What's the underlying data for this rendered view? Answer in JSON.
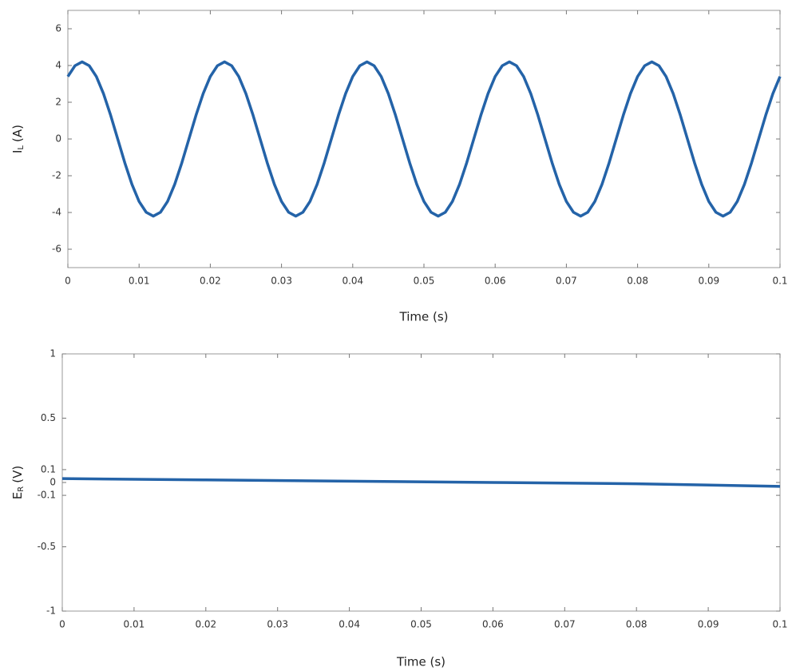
{
  "chart_data": [
    {
      "type": "line",
      "ylabel": {
        "base": "I",
        "subscript": "L",
        "unit": "(A)"
      },
      "xlabel": "Time (s)",
      "x": [
        0,
        0.001,
        0.002,
        0.003,
        0.004,
        0.005,
        0.006,
        0.007,
        0.008,
        0.009,
        0.01,
        0.011,
        0.012,
        0.013,
        0.014,
        0.015,
        0.016,
        0.017,
        0.018,
        0.019,
        0.02,
        0.021,
        0.022,
        0.023,
        0.024,
        0.025,
        0.026,
        0.027,
        0.028,
        0.029,
        0.03,
        0.031,
        0.032,
        0.033,
        0.034,
        0.035,
        0.036,
        0.037,
        0.038,
        0.039,
        0.04,
        0.041,
        0.042,
        0.043,
        0.044,
        0.045,
        0.046,
        0.047,
        0.048,
        0.049,
        0.05,
        0.051,
        0.052,
        0.053,
        0.054,
        0.055,
        0.056,
        0.057,
        0.058,
        0.059,
        0.06,
        0.061,
        0.062,
        0.063,
        0.064,
        0.065,
        0.066,
        0.067,
        0.068,
        0.069,
        0.07,
        0.071,
        0.072,
        0.073,
        0.074,
        0.075,
        0.076,
        0.077,
        0.078,
        0.079,
        0.08,
        0.081,
        0.082,
        0.083,
        0.084,
        0.085,
        0.086,
        0.087,
        0.088,
        0.089,
        0.09,
        0.091,
        0.092,
        0.093,
        0.094,
        0.095,
        0.096,
        0.097,
        0.098,
        0.099,
        0.1
      ],
      "values": [
        3.4,
        3.99,
        4.2,
        3.99,
        3.4,
        2.47,
        1.3,
        0,
        -1.3,
        -2.47,
        -3.4,
        -3.99,
        -4.2,
        -3.99,
        -3.4,
        -2.47,
        -1.3,
        0,
        1.3,
        2.47,
        3.4,
        3.99,
        4.2,
        3.99,
        3.4,
        2.47,
        1.3,
        0,
        -1.3,
        -2.47,
        -3.4,
        -3.99,
        -4.2,
        -3.99,
        -3.4,
        -2.47,
        -1.3,
        0,
        1.3,
        2.47,
        3.4,
        3.99,
        4.2,
        3.99,
        3.4,
        2.47,
        1.3,
        0,
        -1.3,
        -2.47,
        -3.4,
        -3.99,
        -4.2,
        -3.99,
        -3.4,
        -2.47,
        -1.3,
        0,
        1.3,
        2.47,
        3.4,
        3.99,
        4.2,
        3.99,
        3.4,
        2.47,
        1.3,
        0,
        -1.3,
        -2.47,
        -3.4,
        -3.99,
        -4.2,
        -3.99,
        -3.4,
        -2.47,
        -1.3,
        0,
        1.3,
        2.47,
        3.4,
        3.99,
        4.2,
        3.99,
        3.4,
        2.47,
        1.3,
        0,
        -1.3,
        -2.47,
        -3.4,
        -3.99,
        -4.2,
        -3.99,
        -3.4,
        -2.47,
        -1.3,
        0,
        1.3,
        2.47,
        3.4
      ],
      "color": "#2463a8",
      "xlim": [
        0,
        0.1
      ],
      "xticks": [
        0,
        0.01,
        0.02,
        0.03,
        0.04,
        0.05,
        0.06,
        0.07,
        0.08,
        0.09,
        0.1
      ],
      "ylim": [
        -7,
        7
      ],
      "yticks": [
        -6,
        -4,
        -2,
        0,
        2,
        4,
        6
      ]
    },
    {
      "type": "line",
      "ylabel": {
        "base": "E",
        "subscript": "R",
        "unit": "(V)"
      },
      "xlabel": "Time (s)",
      "x": [
        0,
        0.02,
        0.04,
        0.06,
        0.08,
        0.1
      ],
      "values": [
        0.03,
        0.02,
        0.01,
        0,
        -0.01,
        -0.03
      ],
      "color": "#2463a8",
      "xlim": [
        0,
        0.1
      ],
      "xticks": [
        0,
        0.01,
        0.02,
        0.03,
        0.04,
        0.05,
        0.06,
        0.07,
        0.08,
        0.09,
        0.1
      ],
      "ylim": [
        -1,
        1
      ],
      "yticks": [
        -1,
        -0.5,
        -0.1,
        0,
        0.1,
        0.5,
        1
      ]
    }
  ]
}
